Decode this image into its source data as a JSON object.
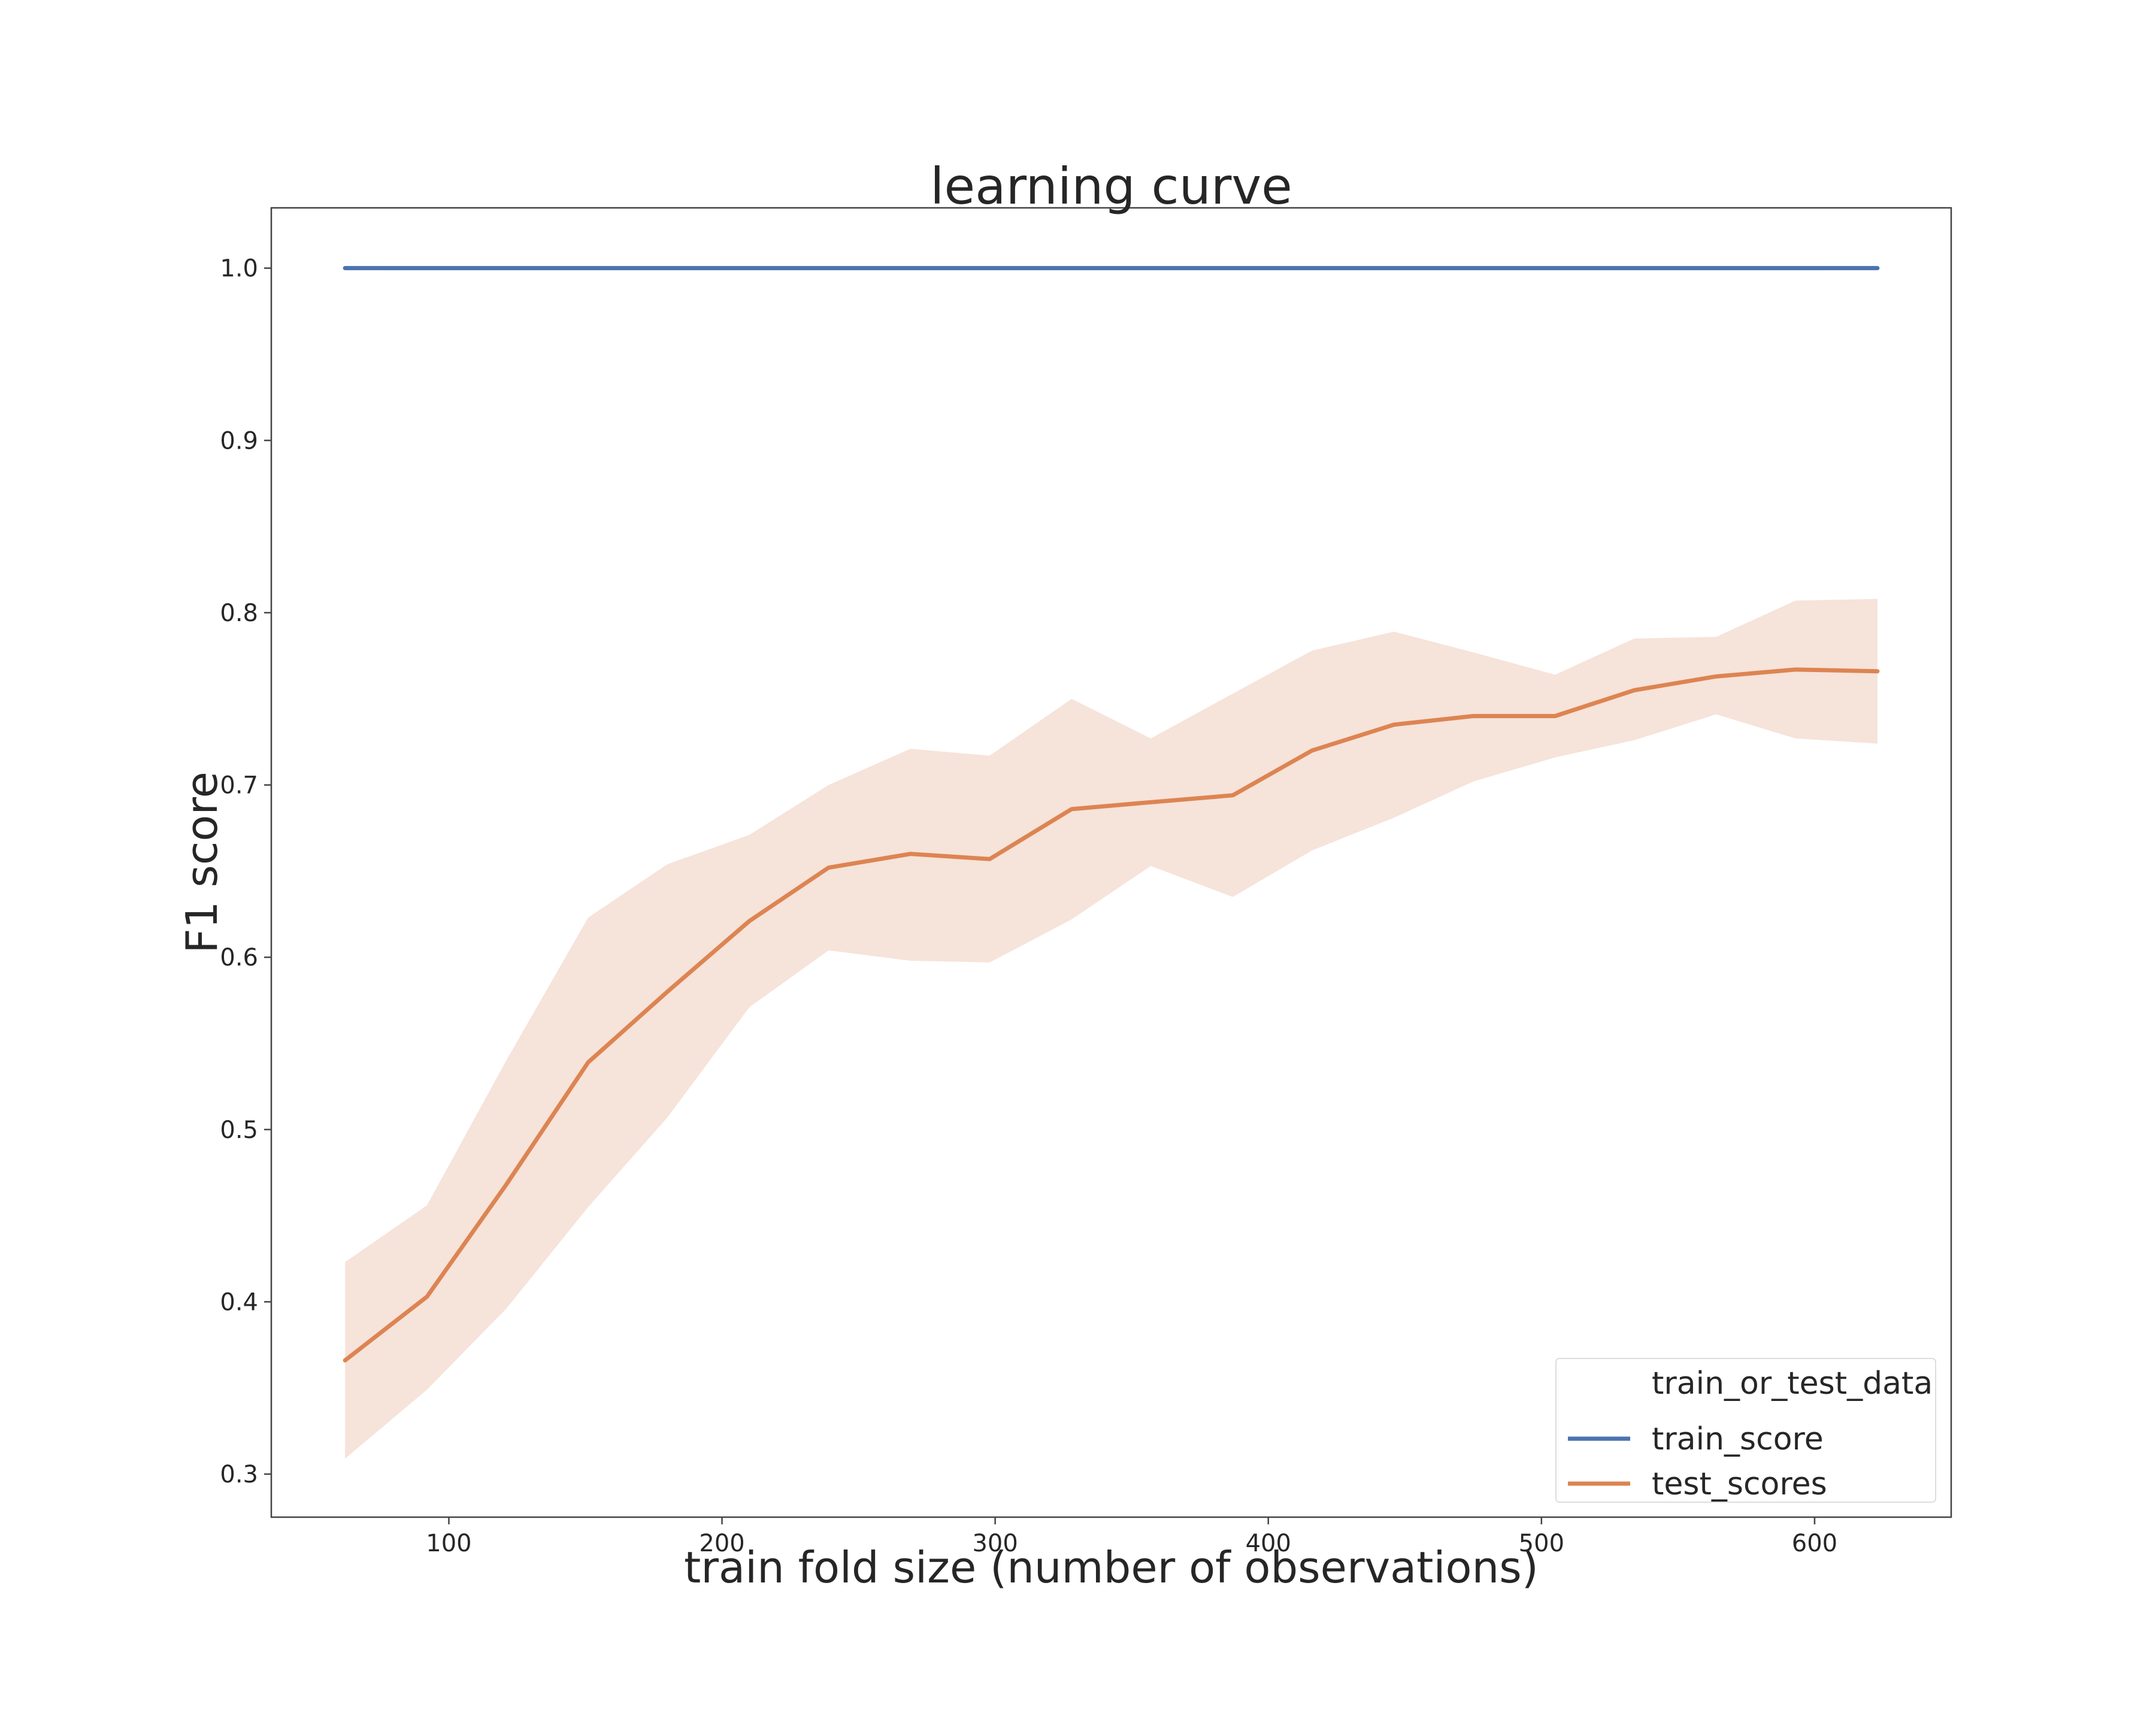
{
  "chart_data": {
    "type": "line",
    "title": "learning curve",
    "xlabel": "train fold size (number of observations)",
    "ylabel": "F1 score",
    "xlim": [
      35,
      650
    ],
    "ylim": [
      0.275,
      1.035
    ],
    "xticks": [
      100,
      200,
      300,
      400,
      500,
      600
    ],
    "yticks": [
      0.3,
      0.4,
      0.5,
      0.6,
      0.7,
      0.8,
      0.9,
      1.0
    ],
    "grid": false,
    "legend": {
      "title": "train_or_test_data",
      "position": "lower-right",
      "entries": [
        "train_score",
        "test_scores"
      ]
    },
    "x": [
      62,
      92,
      121,
      151,
      180,
      210,
      239,
      269,
      298,
      328,
      357,
      387,
      416,
      446,
      475,
      505,
      534,
      564,
      593,
      623
    ],
    "series": [
      {
        "name": "train_score",
        "color": "#4c72b0",
        "values": [
          1.0,
          1.0,
          1.0,
          1.0,
          1.0,
          1.0,
          1.0,
          1.0,
          1.0,
          1.0,
          1.0,
          1.0,
          1.0,
          1.0,
          1.0,
          1.0,
          1.0,
          1.0,
          1.0,
          1.0
        ]
      },
      {
        "name": "test_scores",
        "color": "#dd8452",
        "band_color": "#f6e3d9",
        "values": [
          0.366,
          0.403,
          0.468,
          0.539,
          0.58,
          0.621,
          0.652,
          0.66,
          0.657,
          0.686,
          0.69,
          0.694,
          0.72,
          0.735,
          0.74,
          0.74,
          0.755,
          0.763,
          0.767,
          0.766
        ],
        "lower": [
          0.309,
          0.349,
          0.396,
          0.455,
          0.507,
          0.571,
          0.604,
          0.598,
          0.597,
          0.622,
          0.653,
          0.635,
          0.662,
          0.681,
          0.702,
          0.716,
          0.726,
          0.741,
          0.727,
          0.724
        ],
        "upper": [
          0.423,
          0.456,
          0.54,
          0.623,
          0.654,
          0.671,
          0.7,
          0.721,
          0.717,
          0.75,
          0.727,
          0.753,
          0.778,
          0.789,
          0.777,
          0.764,
          0.785,
          0.786,
          0.807,
          0.808
        ]
      }
    ]
  }
}
